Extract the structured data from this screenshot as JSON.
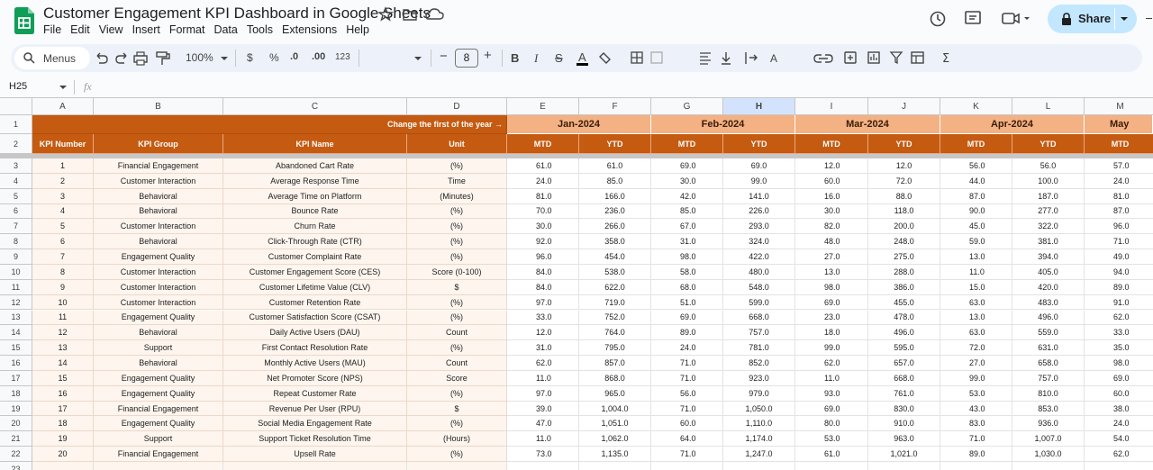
{
  "app": {
    "title": "Customer Engagement KPI Dashboard in Google Sheets",
    "menu": [
      "File",
      "Edit",
      "View",
      "Insert",
      "Format",
      "Data",
      "Tools",
      "Extensions",
      "Help"
    ],
    "share": "Share",
    "toolbar": {
      "search": "Menus",
      "zoom": "100%",
      "currency": "$",
      "percent": "%",
      "dec_less": ".0",
      "dec_more": ".00",
      "number_format": "123",
      "font_size": "8"
    },
    "name_box": "H25",
    "fx": "fx"
  },
  "sheet": {
    "columns": [
      "A",
      "B",
      "C",
      "D",
      "E",
      "F",
      "G",
      "H",
      "I",
      "J",
      "K",
      "L",
      "M"
    ],
    "row_numbers": [
      1,
      2,
      3,
      4,
      5,
      6,
      7,
      8,
      9,
      10,
      11,
      12,
      13,
      14,
      15,
      16,
      17,
      18,
      19,
      20,
      21,
      22,
      23
    ],
    "banner": "Change the first of the year →",
    "months": [
      "Jan-2024",
      "Feb-2024",
      "Mar-2024",
      "Apr-2024",
      "May"
    ],
    "headers": [
      "KPI Number",
      "KPI Group",
      "KPI Name",
      "Unit"
    ],
    "period_headers": [
      "MTD",
      "YTD",
      "MTD",
      "YTD",
      "MTD",
      "YTD",
      "MTD",
      "YTD",
      "MTD"
    ],
    "rows": [
      [
        1,
        "Financial Engagement",
        "Abandoned Cart Rate",
        "(%)",
        "61.0",
        "61.0",
        "69.0",
        "69.0",
        "12.0",
        "12.0",
        "56.0",
        "56.0",
        "57.0"
      ],
      [
        2,
        "Customer Interaction",
        "Average Response Time",
        "Time",
        "24.0",
        "85.0",
        "30.0",
        "99.0",
        "60.0",
        "72.0",
        "44.0",
        "100.0",
        "24.0"
      ],
      [
        3,
        "Behavioral",
        "Average Time on Platform",
        "(Minutes)",
        "81.0",
        "166.0",
        "42.0",
        "141.0",
        "16.0",
        "88.0",
        "87.0",
        "187.0",
        "81.0"
      ],
      [
        4,
        "Behavioral",
        "Bounce Rate",
        "(%)",
        "70.0",
        "236.0",
        "85.0",
        "226.0",
        "30.0",
        "118.0",
        "90.0",
        "277.0",
        "87.0"
      ],
      [
        5,
        "Customer Interaction",
        "Churn Rate",
        "(%)",
        "30.0",
        "266.0",
        "67.0",
        "293.0",
        "82.0",
        "200.0",
        "45.0",
        "322.0",
        "96.0"
      ],
      [
        6,
        "Behavioral",
        "Click-Through Rate (CTR)",
        "(%)",
        "92.0",
        "358.0",
        "31.0",
        "324.0",
        "48.0",
        "248.0",
        "59.0",
        "381.0",
        "71.0"
      ],
      [
        7,
        "Engagement Quality",
        "Customer Complaint Rate",
        "(%)",
        "96.0",
        "454.0",
        "98.0",
        "422.0",
        "27.0",
        "275.0",
        "13.0",
        "394.0",
        "49.0"
      ],
      [
        8,
        "Customer Interaction",
        "Customer Engagement Score (CES)",
        "Score (0-100)",
        "84.0",
        "538.0",
        "58.0",
        "480.0",
        "13.0",
        "288.0",
        "11.0",
        "405.0",
        "94.0"
      ],
      [
        9,
        "Customer Interaction",
        "Customer Lifetime Value (CLV)",
        "$",
        "84.0",
        "622.0",
        "68.0",
        "548.0",
        "98.0",
        "386.0",
        "15.0",
        "420.0",
        "89.0"
      ],
      [
        10,
        "Customer Interaction",
        "Customer Retention Rate",
        "(%)",
        "97.0",
        "719.0",
        "51.0",
        "599.0",
        "69.0",
        "455.0",
        "63.0",
        "483.0",
        "91.0"
      ],
      [
        11,
        "Engagement Quality",
        "Customer Satisfaction Score (CSAT)",
        "(%)",
        "33.0",
        "752.0",
        "69.0",
        "668.0",
        "23.0",
        "478.0",
        "13.0",
        "496.0",
        "62.0"
      ],
      [
        12,
        "Behavioral",
        "Daily Active Users (DAU)",
        "Count",
        "12.0",
        "764.0",
        "89.0",
        "757.0",
        "18.0",
        "496.0",
        "63.0",
        "559.0",
        "33.0"
      ],
      [
        13,
        "Support",
        "First Contact Resolution Rate",
        "(%)",
        "31.0",
        "795.0",
        "24.0",
        "781.0",
        "99.0",
        "595.0",
        "72.0",
        "631.0",
        "35.0"
      ],
      [
        14,
        "Behavioral",
        "Monthly Active Users (MAU)",
        "Count",
        "62.0",
        "857.0",
        "71.0",
        "852.0",
        "62.0",
        "657.0",
        "27.0",
        "658.0",
        "98.0"
      ],
      [
        15,
        "Engagement Quality",
        "Net Promoter Score (NPS)",
        "Score",
        "11.0",
        "868.0",
        "71.0",
        "923.0",
        "11.0",
        "668.0",
        "99.0",
        "757.0",
        "69.0"
      ],
      [
        16,
        "Engagement Quality",
        "Repeat Customer Rate",
        "(%)",
        "97.0",
        "965.0",
        "56.0",
        "979.0",
        "93.0",
        "761.0",
        "53.0",
        "810.0",
        "60.0"
      ],
      [
        17,
        "Financial Engagement",
        "Revenue Per User (RPU)",
        "$",
        "39.0",
        "1,004.0",
        "71.0",
        "1,050.0",
        "69.0",
        "830.0",
        "43.0",
        "853.0",
        "38.0"
      ],
      [
        18,
        "Engagement Quality",
        "Social Media Engagement Rate",
        "(%)",
        "47.0",
        "1,051.0",
        "60.0",
        "1,110.0",
        "80.0",
        "910.0",
        "83.0",
        "936.0",
        "24.0"
      ],
      [
        19,
        "Support",
        "Support Ticket Resolution Time",
        "(Hours)",
        "11.0",
        "1,062.0",
        "64.0",
        "1,174.0",
        "53.0",
        "963.0",
        "71.0",
        "1,007.0",
        "54.0"
      ],
      [
        20,
        "Financial Engagement",
        "Upsell Rate",
        "(%)",
        "73.0",
        "1,135.0",
        "71.0",
        "1,247.0",
        "61.0",
        "1,021.0",
        "89.0",
        "1,030.0",
        "62.0"
      ]
    ]
  }
}
